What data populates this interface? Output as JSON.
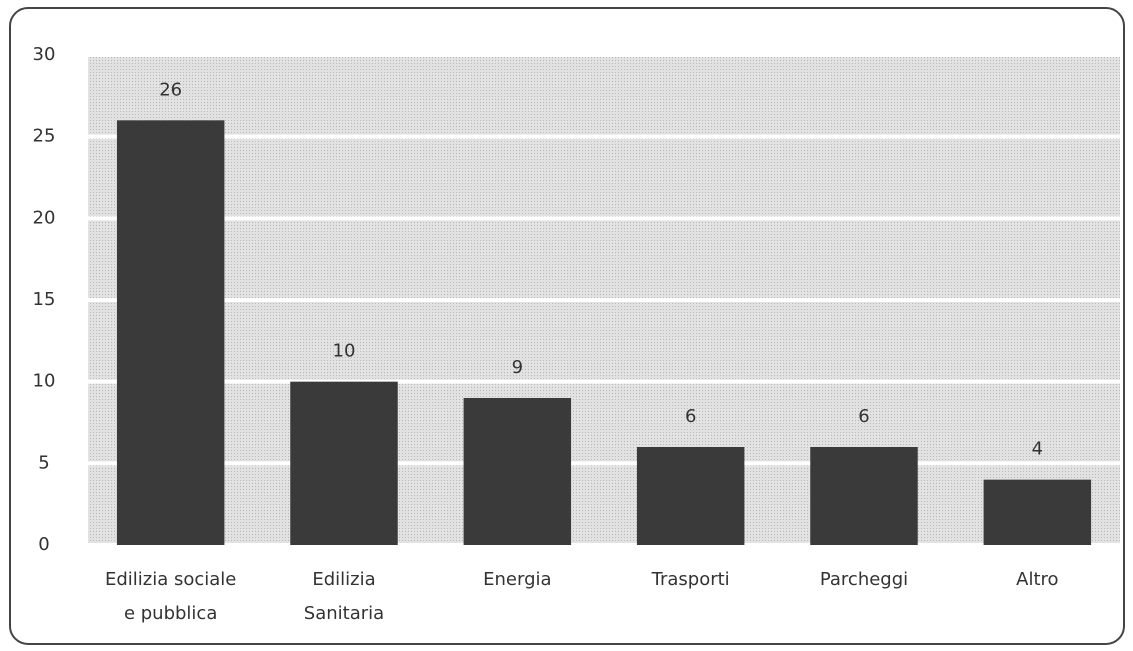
{
  "chart_data": {
    "type": "bar",
    "categories": [
      [
        "Edilizia sociale",
        "e pubblica"
      ],
      [
        "Edilizia",
        "Sanitaria"
      ],
      [
        "Energia"
      ],
      [
        "Trasporti"
      ],
      [
        "Parcheggi"
      ],
      [
        "Altro"
      ]
    ],
    "values": [
      26,
      10,
      9,
      6,
      6,
      4
    ],
    "color": "#3a3a3a",
    "ylim": [
      0,
      30
    ],
    "yticks": [
      0,
      5,
      10,
      15,
      20,
      25,
      30
    ],
    "grid": true
  }
}
